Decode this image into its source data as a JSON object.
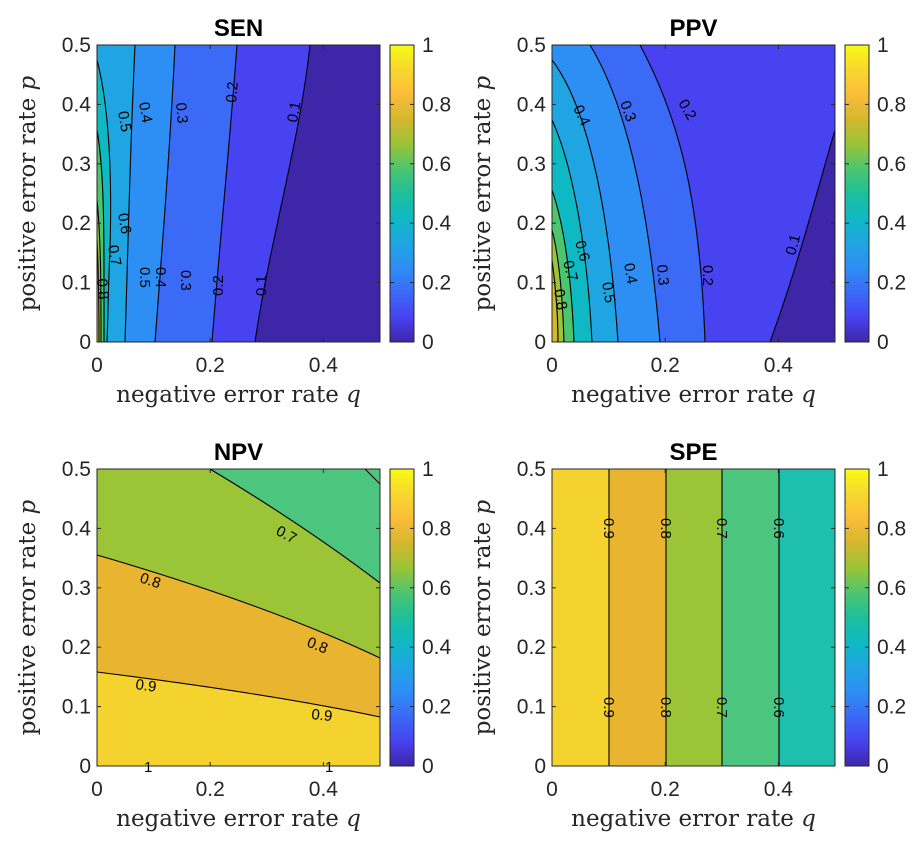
{
  "colormap": [
    "#3e26a8",
    "#4743f0",
    "#3b6af7",
    "#2d8ef4",
    "#1fa5e1",
    "#0fb9c4",
    "#1ebf9b",
    "#4cc56f",
    "#9bc437",
    "#d4b72e",
    "#fbbd3a",
    "#f7d82e",
    "#f9fb15"
  ],
  "chart_data": [
    {
      "type": "contour",
      "panel": "SEN",
      "title": "SEN",
      "xlabel": "negative error rate q",
      "ylabel": "positive error rate p",
      "xlim": [
        0,
        0.5
      ],
      "ylim": [
        0,
        0.5
      ],
      "xticks": [
        "0",
        "0.2",
        "0.4"
      ],
      "yticks": [
        "0",
        "0.1",
        "0.2",
        "0.3",
        "0.4",
        "0.5"
      ],
      "colorbar": {
        "range": [
          0,
          1
        ],
        "ticks": [
          "0",
          "0.2",
          "0.4",
          "0.6",
          "0.8",
          "1"
        ]
      },
      "levels": [
        0.1,
        0.2,
        0.3,
        0.4,
        0.5,
        0.6,
        0.7,
        0.8
      ],
      "contour_labels": [
        "0.5",
        "0.4",
        "0.3",
        "0.2",
        "0.1",
        "0.6",
        "0.7",
        "0.8",
        "0.5",
        "0.4",
        "0.3",
        "0.2",
        "0.1"
      ]
    },
    {
      "type": "contour",
      "panel": "PPV",
      "title": "PPV",
      "xlabel": "negative error rate q",
      "ylabel": "positive error rate p",
      "xlim": [
        0,
        0.5
      ],
      "ylim": [
        0,
        0.5
      ],
      "xticks": [
        "0",
        "0.2",
        "0.4"
      ],
      "yticks": [
        "0",
        "0.1",
        "0.2",
        "0.3",
        "0.4",
        "0.5"
      ],
      "colorbar": {
        "range": [
          0,
          1
        ],
        "ticks": [
          "0",
          "0.2",
          "0.4",
          "0.6",
          "0.8",
          "1"
        ]
      },
      "levels": [
        0.1,
        0.2,
        0.3,
        0.4,
        0.5,
        0.6,
        0.7,
        0.8
      ],
      "contour_labels": [
        "0.4",
        "0.3",
        "0.2",
        "0.1",
        "0.6",
        "0.7",
        "0.8",
        "0.5",
        "0.4",
        "0.3",
        "0.2"
      ]
    },
    {
      "type": "contour",
      "panel": "NPV",
      "title": "NPV",
      "xlabel": "negative error rate q",
      "ylabel": "positive error rate p",
      "xlim": [
        0,
        0.5
      ],
      "ylim": [
        0,
        0.5
      ],
      "xticks": [
        "0",
        "0.2",
        "0.4"
      ],
      "yticks": [
        "0",
        "0.1",
        "0.2",
        "0.3",
        "0.4",
        "0.5"
      ],
      "colorbar": {
        "range": [
          0,
          1
        ],
        "ticks": [
          "0",
          "0.2",
          "0.4",
          "0.6",
          "0.8",
          "1"
        ]
      },
      "levels": [
        0.7,
        0.8,
        0.9
      ],
      "contour_labels": [
        "0.7",
        "0.8",
        "0.8",
        "0.9",
        "0.9",
        "1",
        "1"
      ]
    },
    {
      "type": "contour",
      "panel": "SPE",
      "title": "SPE",
      "xlabel": "negative error rate q",
      "ylabel": "positive error rate p",
      "xlim": [
        0,
        0.5
      ],
      "ylim": [
        0,
        0.5
      ],
      "xticks": [
        "0",
        "0.2",
        "0.4"
      ],
      "yticks": [
        "0",
        "0.1",
        "0.2",
        "0.3",
        "0.4",
        "0.5"
      ],
      "colorbar": {
        "range": [
          0,
          1
        ],
        "ticks": [
          "0",
          "0.2",
          "0.4",
          "0.6",
          "0.8",
          "1"
        ]
      },
      "levels": [
        0.6,
        0.7,
        0.8,
        0.9
      ],
      "contour_labels": [
        "0.9",
        "0.8",
        "0.7",
        "0.6",
        "0.9",
        "0.8",
        "0.7",
        "0.6"
      ]
    }
  ]
}
